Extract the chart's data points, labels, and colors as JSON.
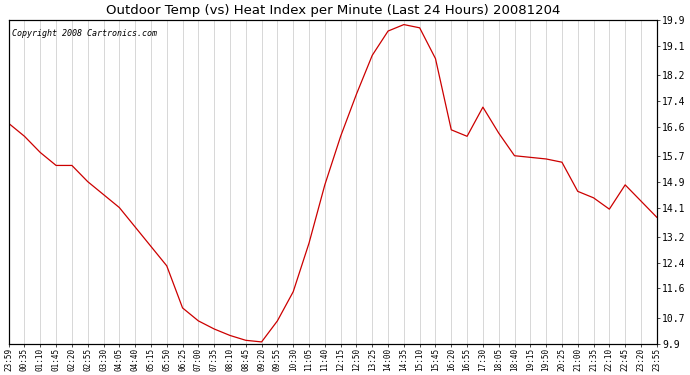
{
  "title": "Outdoor Temp (vs) Heat Index per Minute (Last 24 Hours) 20081204",
  "copyright": "Copyright 2008 Cartronics.com",
  "line_color": "#cc0000",
  "background_color": "#ffffff",
  "grid_color": "#c8c8c8",
  "ylim": [
    9.9,
    19.9
  ],
  "yticks": [
    9.9,
    10.7,
    11.6,
    12.4,
    13.2,
    14.1,
    14.9,
    15.7,
    16.6,
    17.4,
    18.2,
    19.1,
    19.9
  ],
  "xtick_labels": [
    "23:59",
    "00:35",
    "01:10",
    "01:45",
    "02:20",
    "02:55",
    "03:30",
    "04:05",
    "04:40",
    "05:15",
    "05:50",
    "06:25",
    "07:00",
    "07:35",
    "08:10",
    "08:45",
    "09:20",
    "09:55",
    "10:30",
    "11:05",
    "11:40",
    "12:15",
    "12:50",
    "13:25",
    "14:00",
    "14:35",
    "15:10",
    "15:45",
    "16:20",
    "16:55",
    "17:30",
    "18:05",
    "18:40",
    "19:15",
    "19:50",
    "20:25",
    "21:00",
    "21:35",
    "22:10",
    "22:45",
    "23:20",
    "23:55"
  ],
  "y_values": [
    16.7,
    16.3,
    15.8,
    15.4,
    15.4,
    14.9,
    14.5,
    14.1,
    13.5,
    12.9,
    12.3,
    11.0,
    10.6,
    10.35,
    10.15,
    10.0,
    9.95,
    10.6,
    11.5,
    13.0,
    14.8,
    16.3,
    17.6,
    18.8,
    19.55,
    19.75,
    19.65,
    18.7,
    16.5,
    16.3,
    17.2,
    16.4,
    15.7,
    15.65,
    15.6,
    15.5,
    14.6,
    14.4,
    14.05,
    14.8,
    14.3,
    13.8
  ]
}
